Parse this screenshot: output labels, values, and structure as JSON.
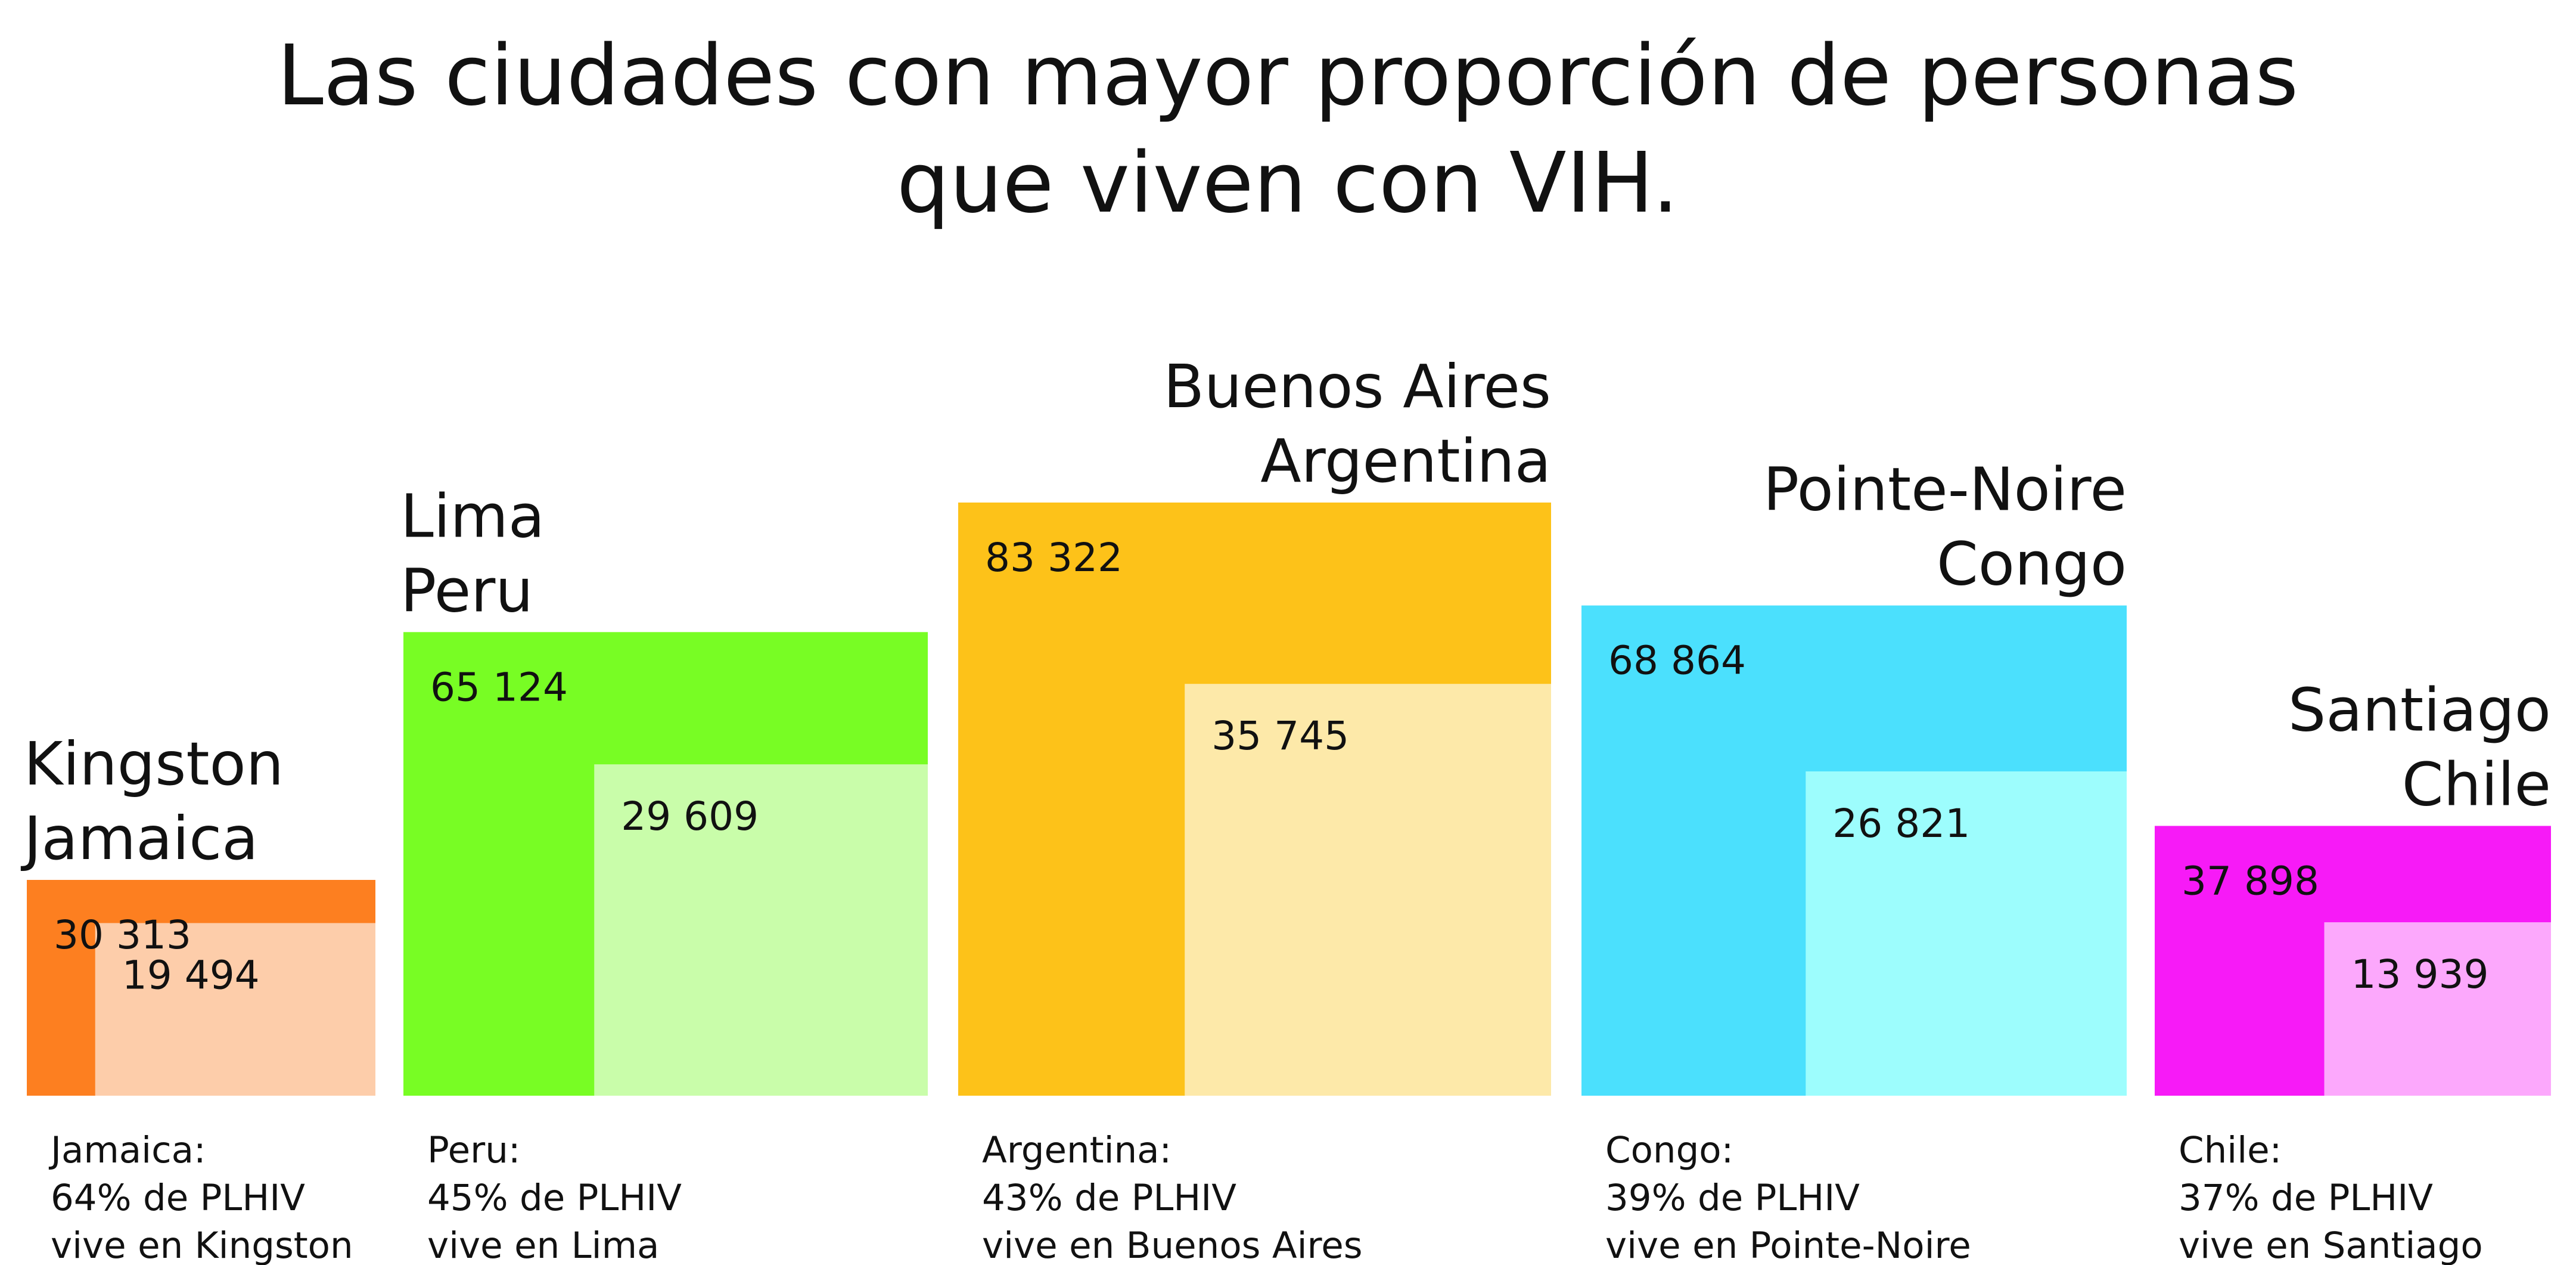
{
  "chart_data": {
    "type": "nested-area",
    "title": [
      "Las ciudades con mayor proporción de personas",
      "que viven con VIH."
    ],
    "series_meaning": "outer = national PLHIV count, inner = PLHIV count in the city",
    "items": [
      {
        "city": [
          "Kingston",
          "Jamaica"
        ],
        "outer_value": 30313,
        "outer_label": "30 313",
        "inner_value": 19494,
        "inner_label": "19 494",
        "outer_color": "#fd7f20",
        "inner_color": "#fdcdaa",
        "note": [
          "Jamaica:",
          "64% de PLHIV",
          "vive en Kingston"
        ],
        "percent": 64
      },
      {
        "city": [
          "Lima",
          "Peru"
        ],
        "outer_value": 65124,
        "outer_label": "65 124",
        "inner_value": 29609,
        "inner_label": "29 609",
        "outer_color": "#78fd24",
        "inner_color": "#c9fdaa",
        "note": [
          "Peru:",
          "45% de PLHIV",
          "vive en Lima"
        ],
        "percent": 45
      },
      {
        "city": [
          "Buenos Aires",
          "Argentina"
        ],
        "outer_value": 83322,
        "outer_label": "83 322",
        "inner_value": 35745,
        "inner_label": "35 745",
        "outer_color": "#fdc219",
        "inner_color": "#fde9a9",
        "note": [
          "Argentina:",
          "43% de PLHIV",
          "vive en Buenos Aires"
        ],
        "percent": 43
      },
      {
        "city": [
          "Pointe-Noire",
          "Congo"
        ],
        "outer_value": 68864,
        "outer_label": "68 864",
        "inner_value": 26821,
        "inner_label": "26 821",
        "outer_color": "#4be0fd",
        "inner_color": "#9dfdfd",
        "note": [
          "Congo:",
          "39% de PLHIV",
          "vive en Pointe-Noire"
        ],
        "percent": 39
      },
      {
        "city": [
          "Santiago",
          "Chile"
        ],
        "outer_value": 37898,
        "outer_label": "37 898",
        "inner_value": 13939,
        "inner_label": "13 939",
        "outer_color": "#f71af7",
        "inner_color": "#fca8fc",
        "note": [
          "Chile:",
          "37% de PLHIV",
          "vive en Santiago"
        ],
        "percent": 37
      }
    ]
  }
}
